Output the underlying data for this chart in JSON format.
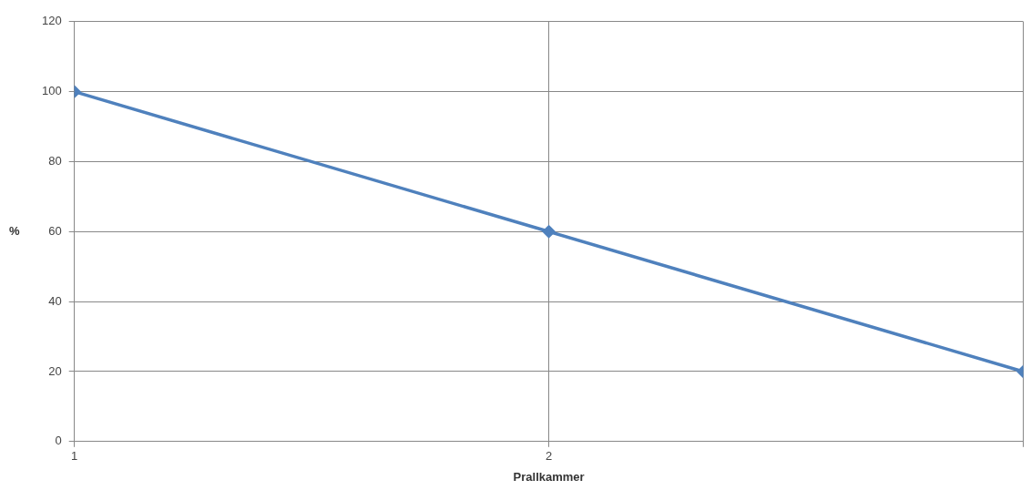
{
  "chart_data": {
    "type": "line",
    "xlabel": "Prallkammer",
    "ylabel": "%",
    "x": [
      1,
      2,
      3
    ],
    "series": [
      {
        "color": "#4f81bd",
        "values": [
          100,
          60,
          20
        ]
      }
    ],
    "xlim": [
      1,
      3
    ],
    "xticks": [
      1,
      2,
      {
        "value": 3,
        "label": null
      }
    ],
    "ylim": [
      0,
      120
    ],
    "yticks": [
      0,
      20,
      40,
      60,
      80,
      100,
      120
    ],
    "grid": true,
    "legend": false,
    "marker": "diamond",
    "line_style": "solid"
  }
}
